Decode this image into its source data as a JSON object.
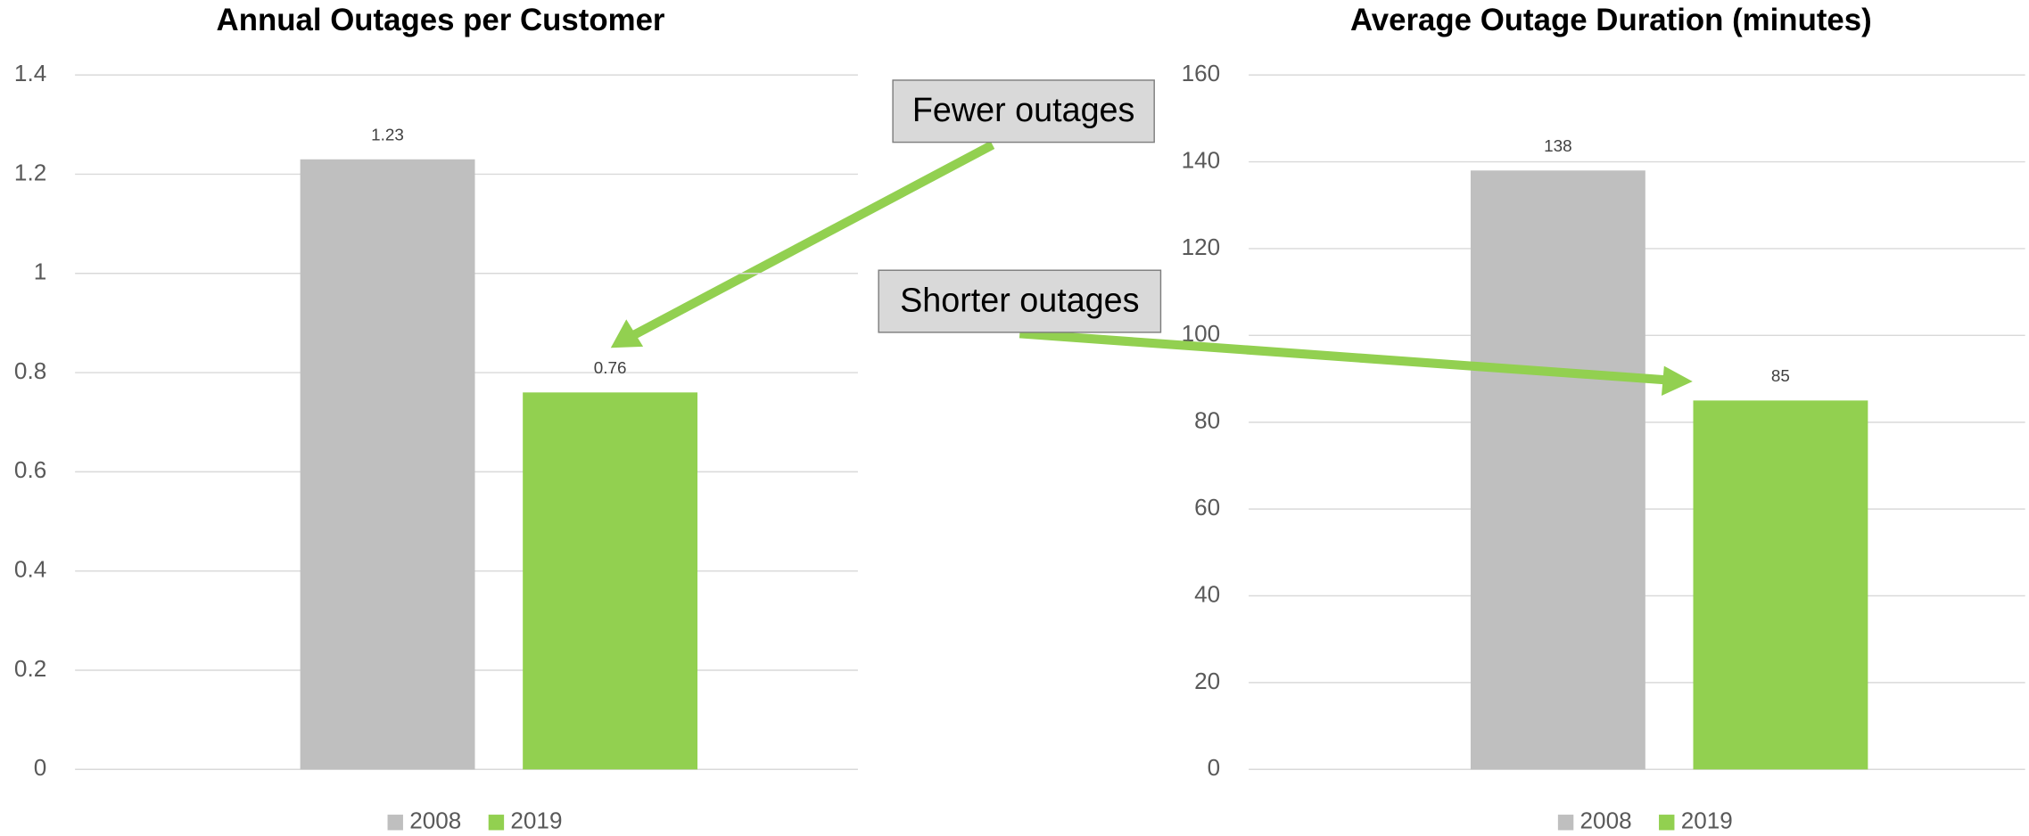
{
  "chart_data": [
    {
      "type": "bar",
      "title": "Annual Outages per Customer",
      "categories": [
        null
      ],
      "series": [
        {
          "name": "2008",
          "color": "#bfbfbf",
          "values": [
            1.23
          ]
        },
        {
          "name": "2019",
          "color": "#92d050",
          "values": [
            0.76
          ]
        }
      ],
      "ylim": [
        0,
        1.4
      ],
      "yticks": [
        0,
        0.2,
        0.4,
        0.6,
        0.8,
        1,
        1.2,
        1.4
      ],
      "grid": true,
      "legend": "bottom",
      "annotation": "Fewer outages"
    },
    {
      "type": "bar",
      "title": "Average Outage Duration (minutes)",
      "categories": [
        null
      ],
      "series": [
        {
          "name": "2008",
          "color": "#bfbfbf",
          "values": [
            138
          ]
        },
        {
          "name": "2019",
          "color": "#92d050",
          "values": [
            85
          ]
        }
      ],
      "ylim": [
        0,
        160
      ],
      "yticks": [
        0,
        20,
        40,
        60,
        80,
        100,
        120,
        140,
        160
      ],
      "grid": true,
      "legend": "bottom",
      "annotation": "Shorter outages"
    }
  ]
}
